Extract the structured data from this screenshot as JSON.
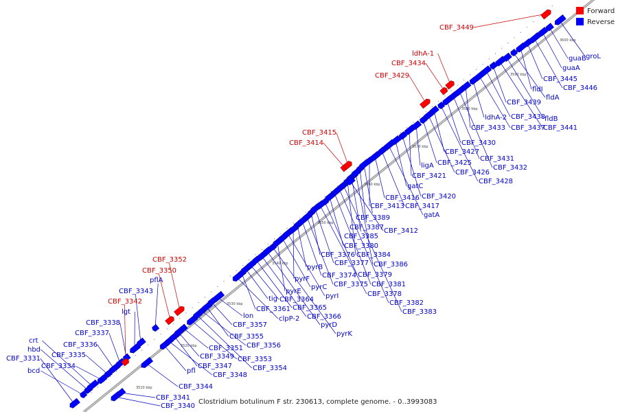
{
  "title": "Clostridium botulinum F str. 230613, complete genome. - 0..3993083",
  "colors": {
    "forward": "#ff0000",
    "reverse": "#0000ff",
    "forward_label": "#cc0000",
    "reverse_label": "#0000cc",
    "backbone": "#999999"
  },
  "legend": [
    {
      "key": "forward",
      "label": "Forward",
      "color": "#ff0000"
    },
    {
      "key": "reverse",
      "label": "Reverse",
      "color": "#0000ff"
    }
  ],
  "ticks": [
    "3510 kbp",
    "3520 kbp",
    "3530 kbp",
    "3540 kbp",
    "3550 kbp",
    "3560 kbp",
    "3570 kbp",
    "3580 kbp",
    "3590 kbp",
    "3600 kbp"
  ],
  "forward_genes": [
    "CBF_3342",
    "CBF_3350",
    "CBF_3352",
    "CBF_3414",
    "CBF_3415",
    "CBF_3429",
    "CBF_3434",
    "ldhA-1",
    "CBF_3449"
  ],
  "reverse_genes": [
    "bcd",
    "CBF_3331",
    "hbd",
    "crt",
    "CBF_3334",
    "CBF_3335",
    "CBF_3336",
    "CBF_3337",
    "CBF_3338",
    "lgt",
    "CBF_3343",
    "pflA",
    "CBF_3340",
    "CBF_3341",
    "CBF_3344",
    "pfl",
    "CBF_3348",
    "CBF_3347",
    "CBF_3349",
    "CBF_3351",
    "CBF_3353",
    "CBF_3354",
    "CBF_3356",
    "CBF_3355",
    "CBF_3357",
    "lon",
    "clpP-2",
    "CBF_3361",
    "tig",
    "CBF_3364",
    "CBF_3365",
    "CBF_3366",
    "pyrD",
    "pyrK",
    "pyrE",
    "pyrC",
    "pyrI",
    "pyrF",
    "pyrB",
    "CBF_3374",
    "CBF_3375",
    "CBF_3376",
    "CBF_3377",
    "CBF_3378",
    "CBF_3379",
    "CBF_3380",
    "CBF_3381",
    "CBF_3382",
    "CBF_3383",
    "CBF_3384",
    "CBF_3385",
    "CBF_3386",
    "CBF_3387",
    "CBF_3389",
    "CBF_3412",
    "CBF_3413",
    "CBF_3416",
    "CBF_3417",
    "gatA",
    "gatC",
    "CBF_3420",
    "CBF_3421",
    "ligA",
    "CBF_3425",
    "CBF_3426",
    "CBF_3427",
    "CBF_3428",
    "CBF_3430",
    "CBF_3431",
    "CBF_3432",
    "CBF_3433",
    "ldhA-2",
    "CBF_3437",
    "CBF_3438",
    "CBF_3439",
    "CBF_3441",
    "fldB",
    "fldA",
    "fldI",
    "CBF_3445",
    "CBF_3446",
    "guaA",
    "guaB",
    "groL"
  ]
}
